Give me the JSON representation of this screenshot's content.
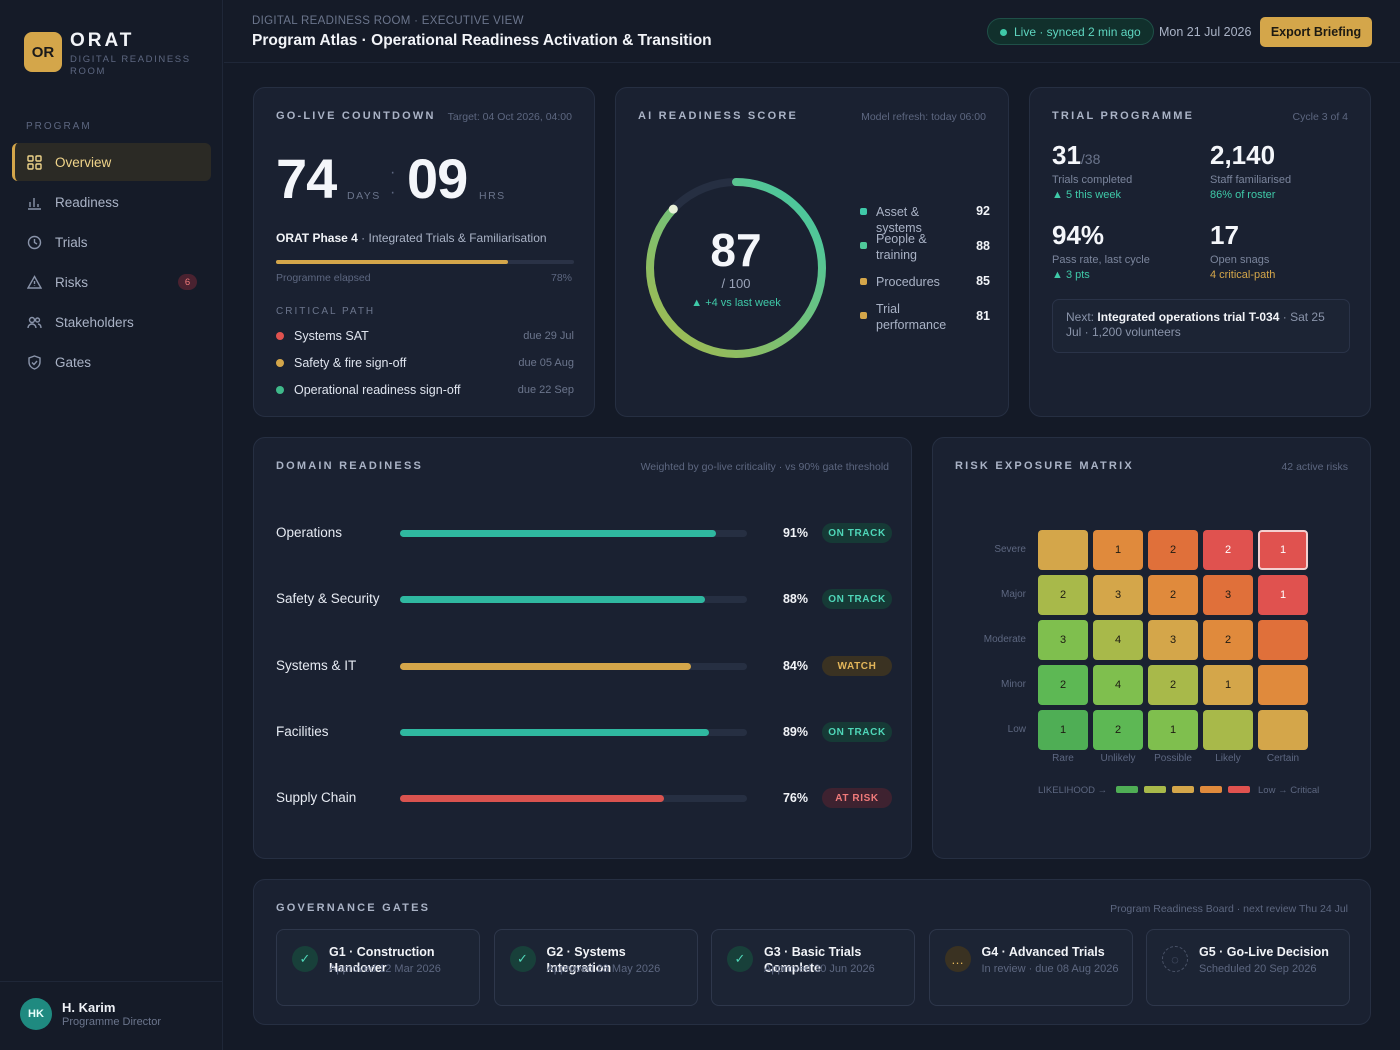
{
  "sidebar": {
    "logo_mark": "OR",
    "logo_title": "ORAT",
    "logo_subtitle": "DIGITAL READINESS ROOM",
    "section_label": "PROGRAM",
    "items": [
      {
        "label": "Overview",
        "icon": "grid-icon"
      },
      {
        "label": "Readiness",
        "icon": "bar-chart-icon"
      },
      {
        "label": "Trials",
        "icon": "clock-icon"
      },
      {
        "label": "Risks",
        "icon": "warning-icon",
        "badge": "6"
      },
      {
        "label": "Stakeholders",
        "icon": "users-icon"
      },
      {
        "label": "Gates",
        "icon": "shield-icon"
      }
    ],
    "user": {
      "initials": "HK",
      "name": "H. Karim",
      "role": "Programme Director"
    }
  },
  "header": {
    "breadcrumb": "DIGITAL READINESS ROOM · EXECUTIVE VIEW",
    "title": "Program Atlas · Operational Readiness Activation & Transition",
    "live_status": "Live · synced 2 min ago",
    "date": "Mon 21 Jul 2026",
    "export_label": "Export Briefing"
  },
  "countdown": {
    "title": "GO-LIVE COUNTDOWN",
    "target": "Target: 04 Oct 2026, 04:00",
    "days": "74",
    "days_unit": "DAYS",
    "hours": "09",
    "hours_unit": "HRS",
    "phase_name": "ORAT Phase 4",
    "phase_desc": "· Integrated Trials & Familiarisation",
    "elapsed_label": "Programme elapsed",
    "elapsed_text": "78%",
    "elapsed_fraction": 0.78,
    "critical_label": "CRITICAL PATH",
    "critical": [
      {
        "label": "Systems SAT",
        "due": "due 29 Jul",
        "color": "#e0524f"
      },
      {
        "label": "Safety & fire sign-off",
        "due": "due 05 Aug",
        "color": "#d4a64a"
      },
      {
        "label": "Operational readiness sign-off",
        "due": "due 22 Sep",
        "color": "#3fb98a"
      }
    ]
  },
  "ai_score": {
    "title": "AI READINESS SCORE",
    "meta": "Model refresh: today 06:00",
    "score": 87,
    "score_text": "87",
    "out_of": "/ 100",
    "delta": "▲ +4 vs last week",
    "components": [
      {
        "label": "Asset & systems",
        "value": "92",
        "color": "#3fc9a8"
      },
      {
        "label": "People & training",
        "value": "88",
        "color": "#4fc99a"
      },
      {
        "label": "Procedures",
        "value": "85",
        "color": "#d4a64a"
      },
      {
        "label": "Trial performance",
        "value": "81",
        "color": "#d4a64a"
      }
    ]
  },
  "trial": {
    "title": "TRIAL PROGRAMME",
    "meta": "Cycle 3 of 4",
    "stats": [
      {
        "value": "31",
        "suffix": "/38",
        "label": "Trials completed",
        "sub": "▲ 5 this week",
        "sub_color": "#3fc9a8"
      },
      {
        "value": "2,140",
        "suffix": "",
        "label": "Staff familiarised",
        "sub": "86% of roster",
        "sub_color": "#3fc9a8"
      },
      {
        "value": "94%",
        "suffix": "",
        "label": "Pass rate, last cycle",
        "sub": "▲ 3 pts",
        "sub_color": "#3fc9a8"
      },
      {
        "value": "17",
        "suffix": "",
        "label": "Open snags",
        "sub": "4 critical-path",
        "sub_color": "#d4a64a"
      }
    ],
    "next_prefix": "Next:",
    "next_bold": "Integrated operations trial T-034",
    "next_rest": "· Sat 25 Jul · 1,200 volunteers"
  },
  "domain": {
    "title": "DOMAIN READINESS",
    "meta": "Weighted by go-live criticality · vs 90% gate threshold",
    "rows": [
      {
        "name": "Operations",
        "value": 91,
        "text": "91%",
        "status": "ON TRACK",
        "kind": "ok"
      },
      {
        "name": "Safety & Security",
        "value": 88,
        "text": "88%",
        "status": "ON TRACK",
        "kind": "ok"
      },
      {
        "name": "Systems & IT",
        "value": 84,
        "text": "84%",
        "status": "WATCH",
        "kind": "watch"
      },
      {
        "name": "Facilities",
        "value": 89,
        "text": "89%",
        "status": "ON TRACK",
        "kind": "ok"
      },
      {
        "name": "Supply Chain",
        "value": 76,
        "text": "76%",
        "status": "AT RISK",
        "kind": "risk"
      }
    ],
    "colors": {
      "ok": "#2fb8a0",
      "watch": "#d4a64a",
      "risk": "#d9534f"
    }
  },
  "matrix": {
    "title": "RISK EXPOSURE MATRIX",
    "meta": "42 active risks",
    "y_labels": [
      "Severe",
      "Major",
      "Moderate",
      "Minor",
      "Low"
    ],
    "x_labels": [
      "Rare",
      "Unlikely",
      "Possible",
      "Likely",
      "Certain"
    ],
    "cells": [
      [
        "",
        "1",
        "2",
        "2",
        "1"
      ],
      [
        "2",
        "3",
        "2",
        "3",
        "1"
      ],
      [
        "3",
        "4",
        "3",
        "2",
        ""
      ],
      [
        "2",
        "4",
        "2",
        "1",
        ""
      ],
      [
        "1",
        "2",
        "1",
        "",
        ""
      ]
    ],
    "cell_colors": [
      [
        "#d4a64a",
        "#e08a3c",
        "#e0703a",
        "#e0524f",
        "#e0524f"
      ],
      [
        "#a8b94a",
        "#d4a64a",
        "#e08a3c",
        "#e0703a",
        "#e0524f"
      ],
      [
        "#7fbf4e",
        "#a8b94a",
        "#d4a64a",
        "#e08a3c",
        "#e0703a"
      ],
      [
        "#5db854",
        "#7fbf4e",
        "#a8b94a",
        "#d4a64a",
        "#e08a3c"
      ],
      [
        "#4fae55",
        "#5db854",
        "#7fbf4e",
        "#a8b94a",
        "#d4a64a"
      ]
    ],
    "legend_left": "LIKELIHOOD →",
    "legend_right": "Low → Critical",
    "legend_colors": [
      "#4fae55",
      "#a8b94a",
      "#d4a64a",
      "#e08a3c",
      "#e0524f"
    ]
  },
  "gates": {
    "title": "GOVERNANCE GATES",
    "meta": "Program Readiness Board · next review Thu 24 Jul",
    "items": [
      {
        "title": "G1 · Construction Handover",
        "sub": "Approved 12 Mar 2026",
        "state": "done",
        "icon": "check-icon"
      },
      {
        "title": "G2 · Systems Integration",
        "sub": "Approved 28 May 2026",
        "state": "done",
        "icon": "check-icon"
      },
      {
        "title": "G3 · Basic Trials Complete",
        "sub": "Approved 30 Jun 2026",
        "state": "done",
        "icon": "check-icon"
      },
      {
        "title": "G4 · Advanced Trials",
        "sub": "In review · due 08 Aug 2026",
        "state": "review",
        "icon": "ellipsis-icon"
      },
      {
        "title": "G5 · Go-Live Decision",
        "sub": "Scheduled 20 Sep 2026",
        "state": "scheduled",
        "icon": "circle-icon"
      }
    ]
  }
}
